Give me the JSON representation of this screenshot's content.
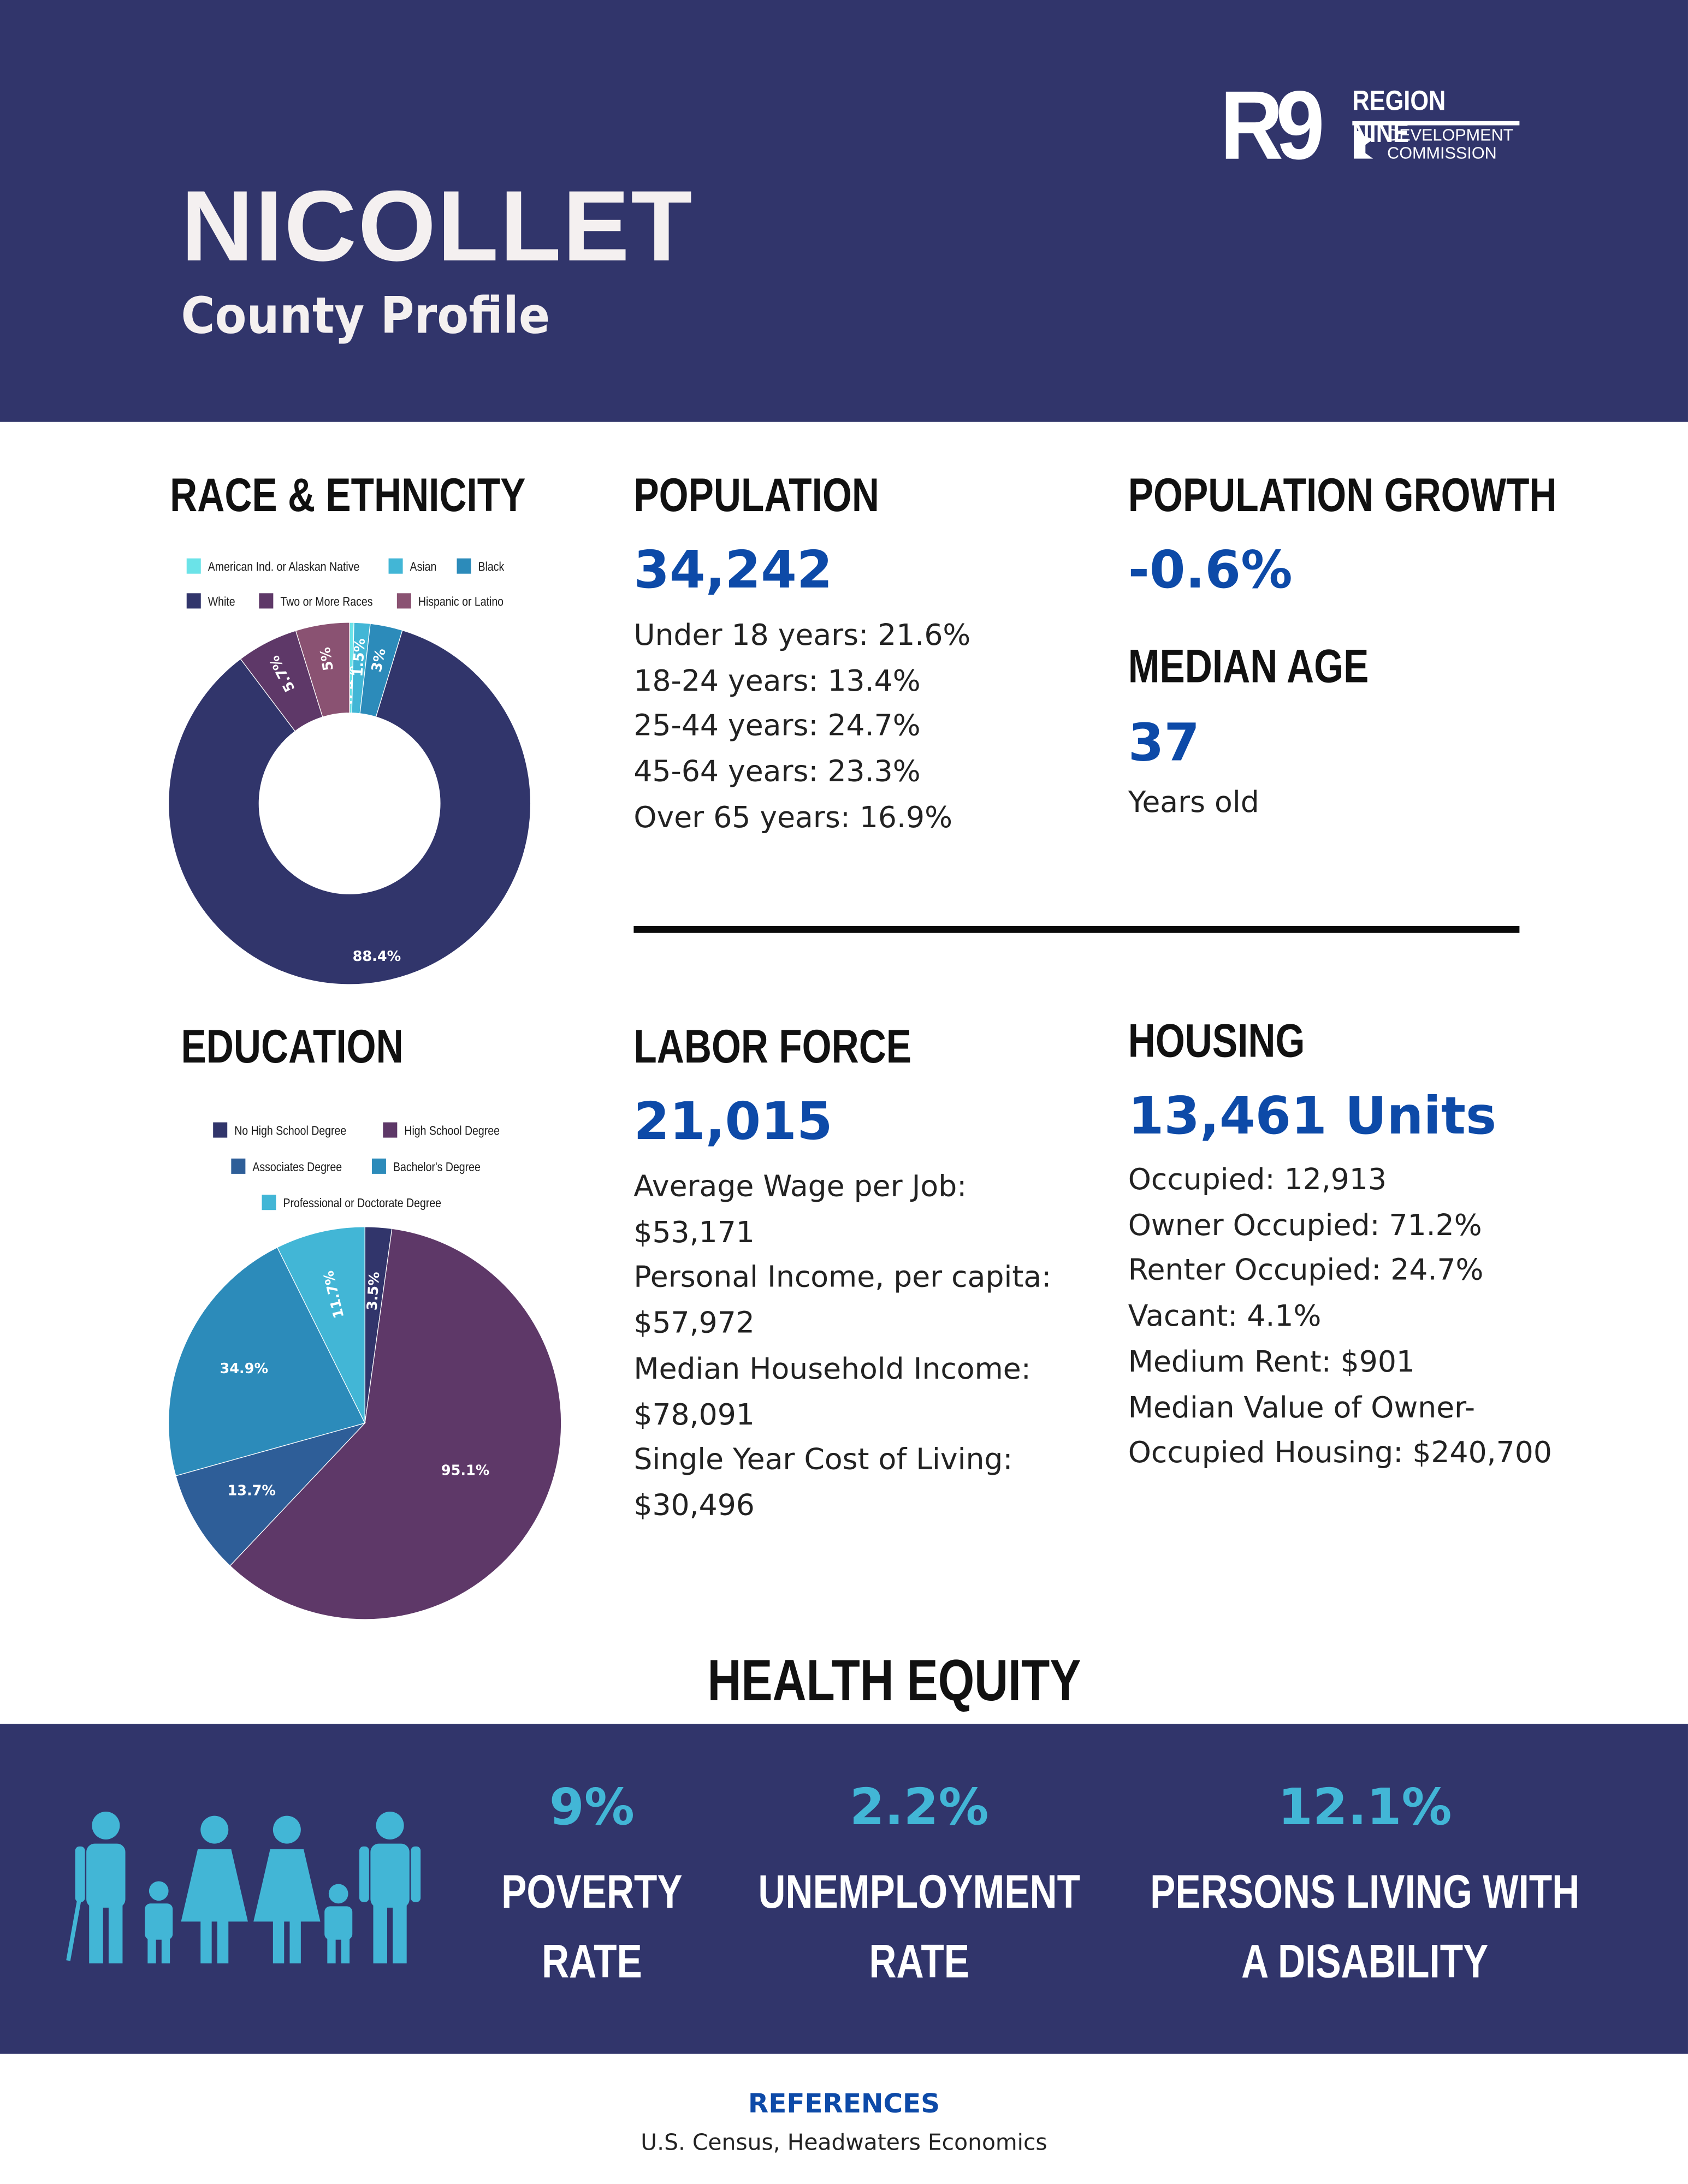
{
  "header": {
    "county": "NICOLLET",
    "subtitle": "County Profile",
    "logo": {
      "mark": "R9",
      "name": "REGION NINE",
      "line2": "DEVELOPMENT",
      "line3": "COMMISSION"
    }
  },
  "race": {
    "title": "RACE & ETHNICITY",
    "chart_data": {
      "type": "pie",
      "variant": "donut",
      "legend": "top",
      "categories": [
        "American Ind. or Alaskan Native",
        "Asian",
        "Black",
        "White",
        "Two or More Races",
        "Hispanic or Latino"
      ],
      "values": [
        0.4,
        1.5,
        3,
        88.4,
        5.7,
        5
      ],
      "labels": [
        "0.4%",
        "1.5%",
        "3%",
        "88.4%",
        "5.7%",
        "5%"
      ],
      "colors": [
        "#6be3e8",
        "#42b6d6",
        "#2c8bba",
        "#31356b",
        "#5e3868",
        "#8a5272"
      ]
    }
  },
  "population": {
    "title": "POPULATION",
    "value": "34,242",
    "lines": [
      "Under 18 years: 21.6%",
      "18-24 years: 13.4%",
      "25-44 years: 24.7%",
      "45-64 years: 23.3%",
      "Over 65 years: 16.9%"
    ]
  },
  "growth": {
    "title": "POPULATION GROWTH",
    "value": "-0.6%"
  },
  "median_age": {
    "title": "MEDIAN AGE",
    "value": "37",
    "unit": "Years old"
  },
  "education": {
    "title": "EDUCATION",
    "chart_data": {
      "type": "pie",
      "legend": "top",
      "categories": [
        "No High School Degree",
        "High School Degree",
        "Associates Degree",
        "Bachelor's Degree",
        "Professional or Doctorate Degree"
      ],
      "values": [
        3.5,
        95.1,
        13.7,
        34.9,
        11.7
      ],
      "labels": [
        "3.5%",
        "95.1%",
        "13.7%",
        "34.9%",
        "11.7%"
      ],
      "colors": [
        "#31356b",
        "#5e3868",
        "#2e5e98",
        "#2c8bba",
        "#42b6d6"
      ]
    }
  },
  "labor": {
    "title": "LABOR FORCE",
    "value": "21,015",
    "lines": [
      "Average Wage per Job:",
      "$53,171",
      "Personal Income, per capita:",
      "$57,972",
      "Median Household Income:",
      "$78,091",
      "Single Year Cost of Living:",
      "$30,496"
    ]
  },
  "housing": {
    "title": "HOUSING",
    "value": "13,461 Units",
    "lines": [
      "Occupied: 12,913",
      "Owner Occupied: 71.2%",
      "Renter Occupied: 24.7%",
      "Vacant: 4.1%",
      "Medium Rent: $901",
      "Median Value of Owner-",
      "Occupied Housing: $240,700"
    ]
  },
  "health": {
    "title": "HEALTH EQUITY",
    "icon": "family-icon",
    "stats": [
      {
        "value": "9%",
        "label1": "POVERTY",
        "label2": "RATE"
      },
      {
        "value": "2.2%",
        "label1": "UNEMPLOYMENT",
        "label2": "RATE"
      },
      {
        "value": "12.1%",
        "label1": "PERSONS LIVING WITH",
        "label2": "A DISABILITY"
      }
    ]
  },
  "references": {
    "title": "REFERENCES",
    "sources": "U.S. Census, Headwaters Economics"
  }
}
